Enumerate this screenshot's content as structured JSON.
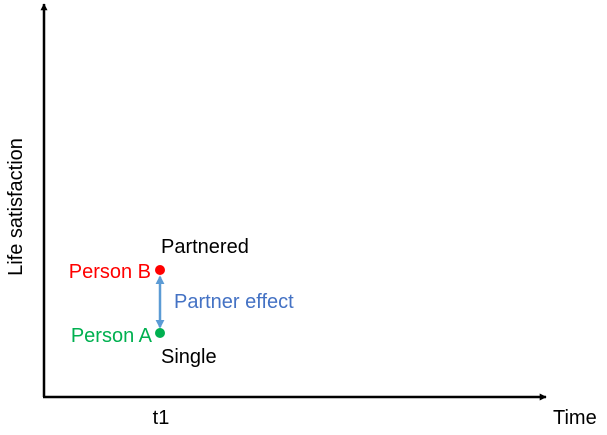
{
  "axes": {
    "x_label": "Time",
    "y_label": "Life satisfaction",
    "x_tick": "t1"
  },
  "points": {
    "person_b": {
      "name": "Person B",
      "status": "Partnered",
      "color": "#ff0000"
    },
    "person_a": {
      "name": "Person A",
      "status": "Single",
      "color": "#00b050"
    }
  },
  "effect": {
    "label": "Partner effect",
    "color": "#5b9bd5"
  },
  "colors": {
    "axis": "#000000",
    "text": "#000000"
  }
}
